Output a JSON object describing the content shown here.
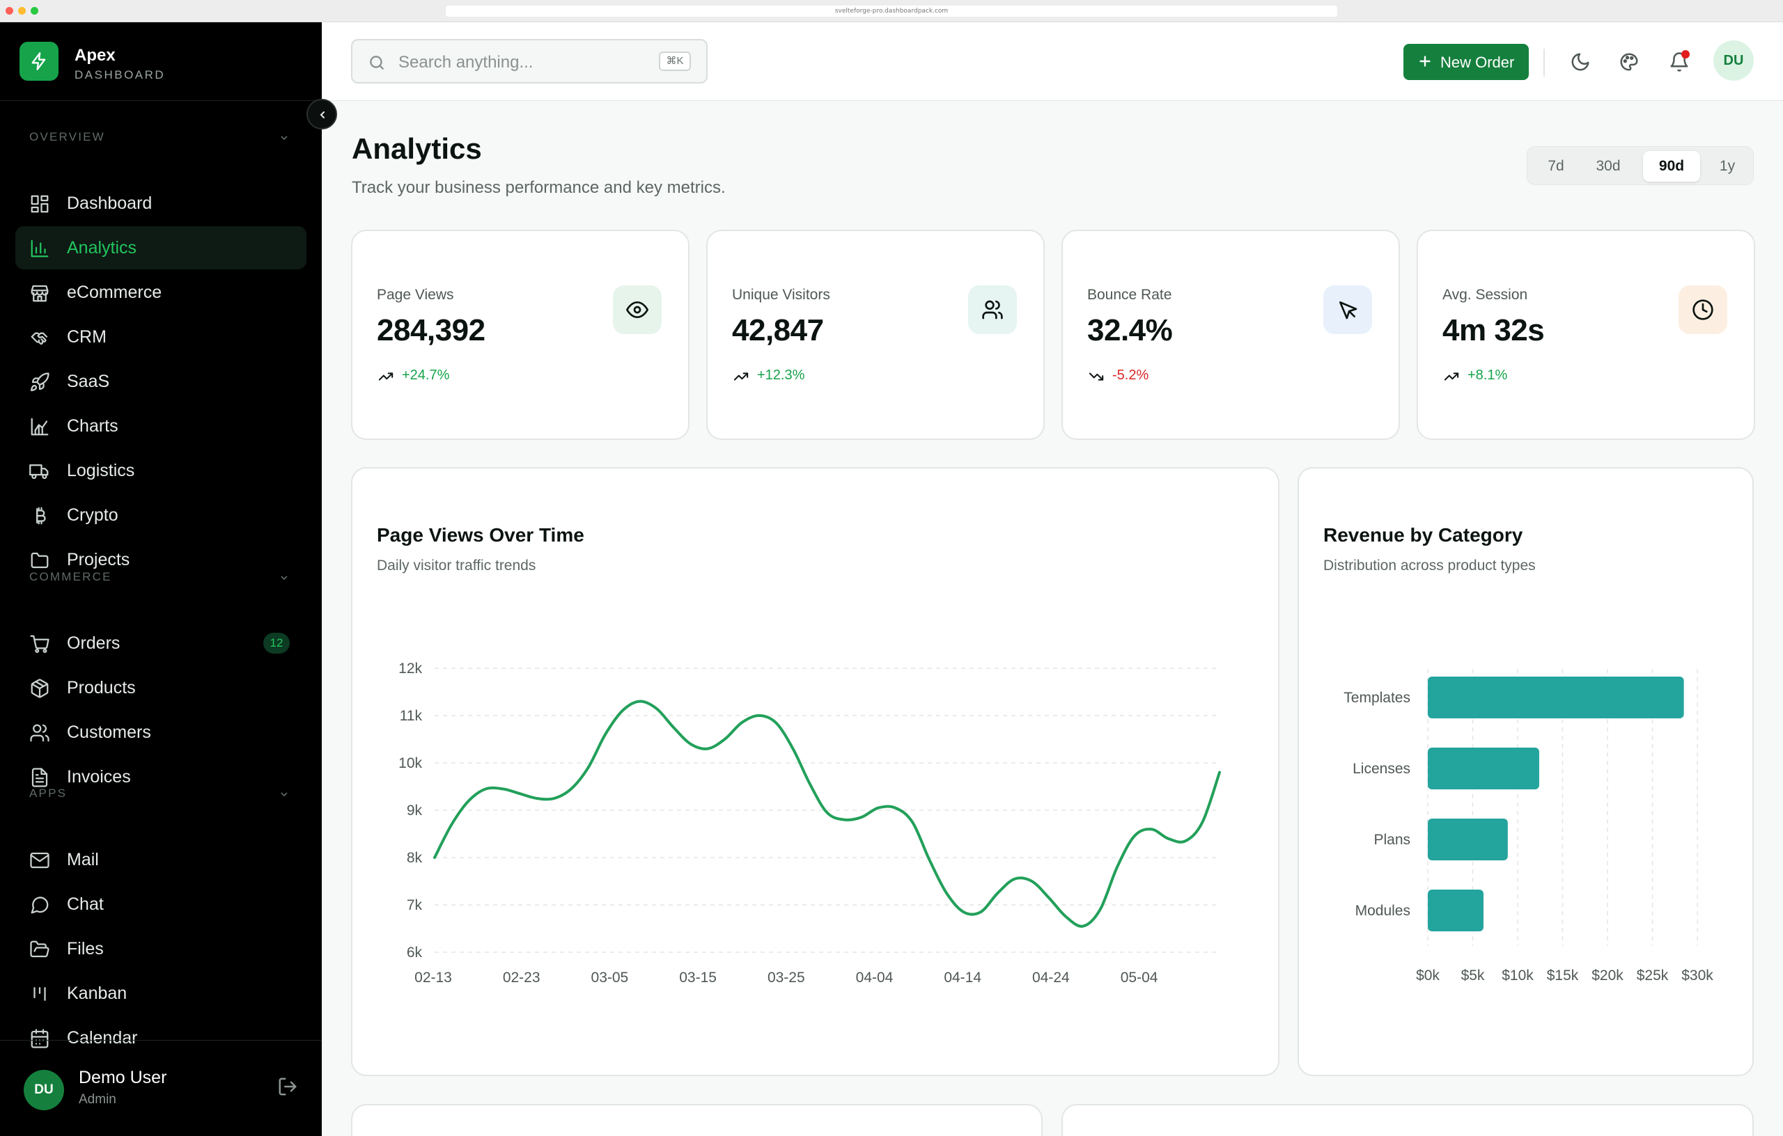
{
  "browser": {
    "url": "svelteforge-pro.dashboardpack.com"
  },
  "brand": {
    "name": "Apex",
    "sub": "DASHBOARD"
  },
  "sidebar": {
    "sections": [
      {
        "label": "OVERVIEW"
      },
      {
        "label": "COMMERCE"
      },
      {
        "label": "APPS"
      }
    ],
    "overview": [
      {
        "label": "Dashboard",
        "icon": "grid-icon"
      },
      {
        "label": "Analytics",
        "icon": "bar-chart-icon",
        "active": true
      },
      {
        "label": "eCommerce",
        "icon": "store-icon"
      },
      {
        "label": "CRM",
        "icon": "handshake-icon"
      },
      {
        "label": "SaaS",
        "icon": "rocket-icon"
      },
      {
        "label": "Charts",
        "icon": "area-chart-icon"
      },
      {
        "label": "Logistics",
        "icon": "truck-icon"
      },
      {
        "label": "Crypto",
        "icon": "bitcoin-icon"
      },
      {
        "label": "Projects",
        "icon": "folder-icon"
      }
    ],
    "commerce": [
      {
        "label": "Orders",
        "icon": "cart-icon",
        "badge": "12"
      },
      {
        "label": "Products",
        "icon": "package-icon"
      },
      {
        "label": "Customers",
        "icon": "users-icon"
      },
      {
        "label": "Invoices",
        "icon": "file-text-icon"
      }
    ],
    "apps": [
      {
        "label": "Mail",
        "icon": "mail-icon"
      },
      {
        "label": "Chat",
        "icon": "message-circle-icon"
      },
      {
        "label": "Files",
        "icon": "folder-open-icon"
      },
      {
        "label": "Kanban",
        "icon": "kanban-icon"
      },
      {
        "label": "Calendar",
        "icon": "calendar-icon"
      }
    ],
    "user": {
      "initials": "DU",
      "name": "Demo User",
      "role": "Admin"
    }
  },
  "header": {
    "search_placeholder": "Search anything...",
    "search_shortcut": "⌘K",
    "new_order_label": "New Order",
    "avatar_initials": "DU"
  },
  "page": {
    "title": "Analytics",
    "subtitle": "Track your business performance and key metrics.",
    "ranges": [
      "7d",
      "30d",
      "90d",
      "1y"
    ],
    "selected_range": "90d"
  },
  "stats": [
    {
      "label": "Page Views",
      "value": "284,392",
      "change": "+24.7%",
      "trend": "up",
      "icon": "eye-icon",
      "tint": "#e6f4ec"
    },
    {
      "label": "Unique Visitors",
      "value": "42,847",
      "change": "+12.3%",
      "trend": "up",
      "icon": "users-icon",
      "tint": "#e6f4f2"
    },
    {
      "label": "Bounce Rate",
      "value": "32.4%",
      "change": "-5.2%",
      "trend": "down",
      "icon": "pointer-icon",
      "tint": "#e7f0fb"
    },
    {
      "label": "Avg. Session",
      "value": "4m 32s",
      "change": "+8.1%",
      "trend": "up",
      "icon": "clock-icon",
      "tint": "#fcefe1"
    }
  ],
  "colors": {
    "positive": "#16a34a",
    "negative": "#dc2626",
    "accent": "#15803d",
    "line": "#22a05a",
    "bar": "#23a49d"
  },
  "page_views_chart": {
    "title": "Page Views Over Time",
    "subtitle": "Daily visitor traffic trends"
  },
  "revenue_chart": {
    "title": "Revenue by Category",
    "subtitle": "Distribution across product types"
  },
  "chart_data": [
    {
      "type": "line",
      "y_ticks": [
        "6k",
        "7k",
        "8k",
        "9k",
        "10k",
        "11k",
        "12k"
      ],
      "ylim": [
        6000,
        12000
      ],
      "x_ticks": [
        "02-13",
        "02-23",
        "03-05",
        "03-15",
        "03-25",
        "04-04",
        "04-14",
        "04-24",
        "05-04"
      ],
      "grid": true,
      "series": [
        {
          "values": [
            8000,
            8700,
            9200,
            9450,
            9450,
            9350,
            9250,
            9250,
            9450,
            9900,
            10600,
            11100,
            11300,
            11150,
            10750,
            10400,
            10300,
            10500,
            10850,
            11000,
            10850,
            10300,
            9550,
            8950,
            8800,
            8850,
            9050,
            9050,
            8750,
            7950,
            7250,
            6850,
            6850,
            7250,
            7550,
            7500,
            7150,
            6750,
            6550,
            6900,
            7800,
            8450,
            8600,
            8400,
            8350,
            8750,
            9800
          ]
        }
      ]
    },
    {
      "type": "bar",
      "orientation": "horizontal",
      "categories": [
        "Templates",
        "Licenses",
        "Plans",
        "Modules"
      ],
      "values": [
        28500,
        12400,
        8900,
        6200
      ],
      "x_ticks": [
        "$0k",
        "$5k",
        "$10k",
        "$15k",
        "$20k",
        "$25k",
        "$30k"
      ],
      "xlim": [
        0,
        30000
      ],
      "grid": true
    }
  ]
}
